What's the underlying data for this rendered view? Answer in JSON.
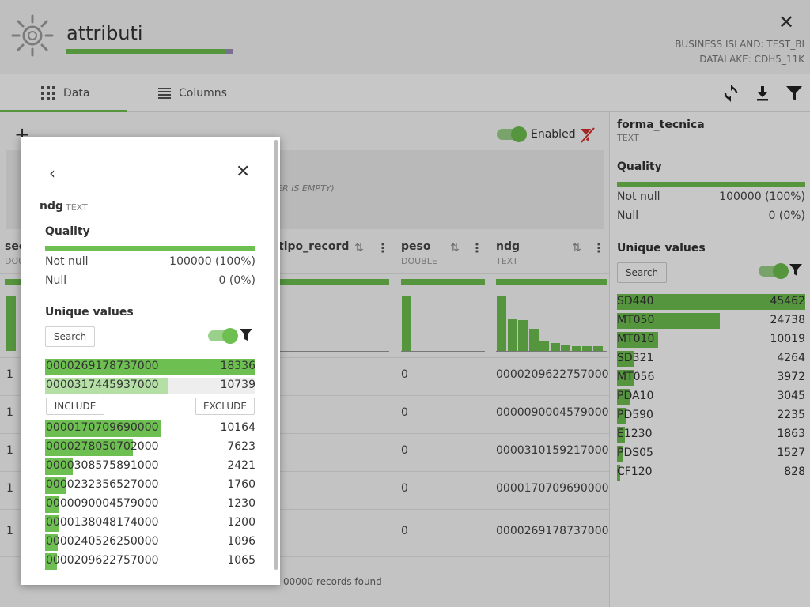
{
  "header": {
    "title": "attributi",
    "business_island": "BUSINESS ISLAND: TEST_BI",
    "datalake": "DATALAKE: CDH5_11K",
    "logo_icon": "gear-sun-icon",
    "close_icon": "close-icon"
  },
  "tabs": [
    {
      "label": "Data",
      "icon": "grid-icon",
      "active": true
    },
    {
      "label": "Columns",
      "icon": "list-icon",
      "active": false
    }
  ],
  "toolbar": {
    "refresh_icon": "refresh-icon",
    "download_icon": "download-icon",
    "filter_icon": "filter-icon"
  },
  "filters": {
    "add_label": "+",
    "enabled_label": "Enabled",
    "empty_text": "LTER IS EMPTY)"
  },
  "table": {
    "columns": [
      {
        "name": "sec",
        "type": "DOU"
      },
      {
        "name": "tipo_record",
        "type": ""
      },
      {
        "name": "peso",
        "type": "DOUBLE"
      },
      {
        "name": "ndg",
        "type": "TEXT"
      }
    ],
    "ndg_histogram": [
      1.0,
      0.58,
      0.55,
      0.4,
      0.18,
      0.14,
      0.1,
      0.08,
      0.08,
      0.08
    ],
    "rows": [
      {
        "sec": "1",
        "peso": "0",
        "ndg": "0000209622757000"
      },
      {
        "sec": "1",
        "peso": "0",
        "ndg": "0000090004579000"
      },
      {
        "sec": "1",
        "peso": "0",
        "ndg": "0000310159217000"
      },
      {
        "sec": "1",
        "peso": "0",
        "ndg": "0000170709690000"
      },
      {
        "sec": "1",
        "peso": "0",
        "ndg": "0000269178737000"
      }
    ],
    "records_found": "00000 records found"
  },
  "right_panel": {
    "column": "forma_tecnica",
    "type": "TEXT",
    "quality_title": "Quality",
    "not_null_label": "Not null",
    "not_null_value": "100000 (100%)",
    "null_label": "Null",
    "null_value": "0 (0%)",
    "unique_title": "Unique values",
    "search_label": "Search",
    "max_count": 45462,
    "values": [
      {
        "label": "SD440",
        "count": "45462",
        "n": 45462
      },
      {
        "label": "MT050",
        "count": "24738",
        "n": 24738
      },
      {
        "label": "MT010",
        "count": "10019",
        "n": 10019
      },
      {
        "label": "SD321",
        "count": "4264",
        "n": 4264
      },
      {
        "label": "MT056",
        "count": "3972",
        "n": 3972
      },
      {
        "label": "PDA10",
        "count": "3045",
        "n": 3045
      },
      {
        "label": "PD590",
        "count": "2235",
        "n": 2235
      },
      {
        "label": "E1230",
        "count": "1863",
        "n": 1863
      },
      {
        "label": "PDS05",
        "count": "1527",
        "n": 1527
      },
      {
        "label": "CF120",
        "count": "828",
        "n": 828
      }
    ]
  },
  "popup": {
    "back_icon": "chevron-left-icon",
    "close_icon": "close-icon",
    "column": "ndg",
    "type": "TEXT",
    "quality_title": "Quality",
    "not_null_label": "Not null",
    "not_null_value": "100000 (100%)",
    "null_label": "Null",
    "null_value": "0 (0%)",
    "unique_title": "Unique values",
    "search_label": "Search",
    "include_label": "INCLUDE",
    "exclude_label": "EXCLUDE",
    "max_count": 18336,
    "values": [
      {
        "label": "0000269178737000",
        "count": "18336",
        "n": 18336
      },
      {
        "label": "0000317445937000",
        "count": "10739",
        "n": 10739,
        "selected": true
      },
      {
        "label": "0000170709690000",
        "count": "10164",
        "n": 10164
      },
      {
        "label": "0000278050702000",
        "count": "7623",
        "n": 7623
      },
      {
        "label": "0000308575891000",
        "count": "2421",
        "n": 2421
      },
      {
        "label": "0000232356527000",
        "count": "1760",
        "n": 1760
      },
      {
        "label": "0000090004579000",
        "count": "1230",
        "n": 1230
      },
      {
        "label": "0000138048174000",
        "count": "1200",
        "n": 1200
      },
      {
        "label": "0000240526250000",
        "count": "1096",
        "n": 1096
      },
      {
        "label": "0000209622757000",
        "count": "1065",
        "n": 1065
      }
    ]
  },
  "colors": {
    "accent": "#6cbf50",
    "accent_light": "#b4e0a6",
    "alert": "#d32f2f"
  }
}
